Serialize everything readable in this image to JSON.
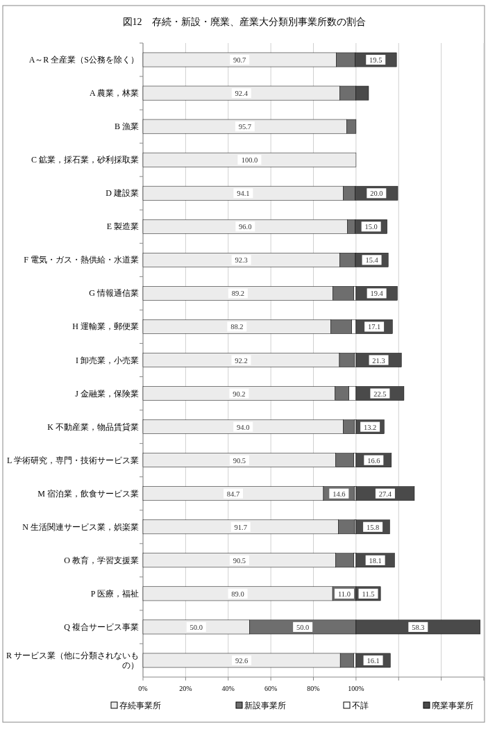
{
  "chart_data": {
    "type": "bar",
    "orientation": "horizontal",
    "stacked": true,
    "title": "図12　存続・新設・廃業、産業大分類別事業所数の割合",
    "categories": [
      "A～R 全産業（S公務を除く）",
      "A 農業，林業",
      "B 漁業",
      "C 鉱業，採石業，砂利採取業",
      "D 建設業",
      "E 製造業",
      "F 電気・ガス・熱供給・水道業",
      "G 情報通信業",
      "H 運輸業，郵便業",
      "I 卸売業，小売業",
      "J 金融業，保険業",
      "K 不動産業，物品賃貸業",
      "L 学術研究，専門・技術サービス業",
      "M 宿泊業，飲食サービス業",
      "N 生活関連サービス業，娯楽業",
      "O 教育，学習支援業",
      "P 医療，福祉",
      "Q 複合サービス事業",
      "R サービス業（他に分類されないもの）"
    ],
    "series": [
      {
        "name": "存続事業所",
        "color": "#ececec",
        "values": [
          90.7,
          92.4,
          95.7,
          100.0,
          94.1,
          96.0,
          92.3,
          89.2,
          88.2,
          92.2,
          90.2,
          94.0,
          90.5,
          84.7,
          91.7,
          90.5,
          89.0,
          50.0,
          92.6
        ],
        "value_labels": [
          "90.7",
          "92.4",
          "95.7",
          "100.0",
          "94.1",
          "96.0",
          "92.3",
          "89.2",
          "88.2",
          "92.2",
          "90.2",
          "94.0",
          "90.5",
          "84.7",
          "91.7",
          "90.5",
          "89.0",
          "50.0",
          "92.6"
        ]
      },
      {
        "name": "新設事業所",
        "color": "#6e6e6e",
        "values": [
          8.8,
          7.4,
          4.3,
          0,
          5.5,
          3.6,
          7.4,
          9.8,
          9.8,
          7.1,
          6.5,
          5.3,
          8.5,
          14.6,
          7.7,
          8.5,
          11.0,
          50.0,
          6.4
        ],
        "value_labels": [
          null,
          null,
          null,
          null,
          null,
          null,
          null,
          null,
          null,
          null,
          null,
          null,
          null,
          "14.6",
          null,
          null,
          "11.0",
          "50.0",
          null
        ]
      },
      {
        "name": "不詳",
        "color": "#ffffff",
        "values": [
          null,
          null,
          0,
          0,
          null,
          null,
          null,
          1.0,
          2.0,
          0.7,
          3.3,
          0.7,
          1.0,
          0.7,
          0.6,
          1.0,
          0,
          0,
          1.0
        ]
      },
      {
        "name": "廃業事業所",
        "color": "#4a4a4a",
        "values": [
          19.5,
          6.1,
          0,
          0,
          20.0,
          15.0,
          15.4,
          19.4,
          17.1,
          21.3,
          22.5,
          13.2,
          16.6,
          27.4,
          15.8,
          18.1,
          11.5,
          58.3,
          16.1
        ],
        "value_labels": [
          "19.5",
          null,
          null,
          null,
          "20.0",
          "15.0",
          "15.4",
          "19.4",
          "17.1",
          "21.3",
          "22.5",
          "13.2",
          "16.6",
          "27.4",
          "15.8",
          "18.1",
          "11.5",
          "58.3",
          "16.1"
        ]
      }
    ],
    "xlim": [
      0,
      160
    ],
    "xticks": [
      {
        "value": 0,
        "label": "0%"
      },
      {
        "value": 20,
        "label": "20%"
      },
      {
        "value": 40,
        "label": "40%"
      },
      {
        "value": 60,
        "label": "60%"
      },
      {
        "value": 80,
        "label": "80%"
      },
      {
        "value": 100,
        "label": "100%"
      },
      {
        "value": 120,
        "label": null
      },
      {
        "value": 140,
        "label": null
      },
      {
        "value": 160,
        "label": null
      }
    ],
    "grid": "x",
    "legend": "bottom"
  }
}
